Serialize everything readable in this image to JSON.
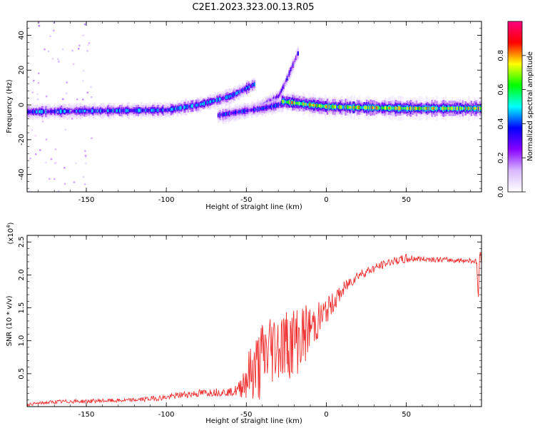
{
  "title": "C2E1.2023.323.00.13.R05",
  "colors": {
    "snr_line": "#f03030",
    "axis": "#000000",
    "background": "#ffffff"
  },
  "chart_data": [
    {
      "type": "heatmap",
      "xlabel": "Height of straight line (km)",
      "ylabel": "Frequency (Hz)",
      "xlim": [
        -187,
        97
      ],
      "ylim": [
        -50,
        48
      ],
      "x_ticks": [
        -150,
        -100,
        -50,
        0,
        50
      ],
      "y_ticks": [
        -40,
        -20,
        0,
        20,
        40
      ],
      "colorbar": {
        "label": "Normalized spectral amplitude",
        "range": [
          0,
          1
        ],
        "ticks": [
          0.0,
          0.2,
          0.4,
          0.6,
          0.8
        ],
        "colormap": [
          "#ffffff",
          "#d8b8ff",
          "#8800ff",
          "#0000ff",
          "#00ffff",
          "#00ff00",
          "#ffff00",
          "#ff0000",
          "#ff0080"
        ]
      },
      "features": [
        {
          "x": [
            -187,
            -150,
            -100,
            -80,
            -60,
            -45
          ],
          "y": [
            -4,
            -3.5,
            -3,
            0,
            5,
            12
          ],
          "amplitude": 0.45
        },
        {
          "x": [
            -65,
            -50,
            -40,
            -30,
            -25,
            -18
          ],
          "y": [
            -7,
            -3,
            0,
            5,
            15,
            30
          ],
          "amplitude": 0.3
        },
        {
          "x": [
            -68,
            -55,
            -40,
            -30,
            -20
          ],
          "y": [
            -6,
            -4,
            -2,
            0,
            3
          ],
          "amplitude": 0.4
        },
        {
          "x": [
            -28,
            -10,
            0,
            20,
            50,
            75,
            97
          ],
          "y": [
            2,
            0,
            -1,
            -1.5,
            -2,
            -2,
            -2
          ],
          "amplitude": 0.75
        }
      ]
    },
    {
      "type": "line",
      "xlabel": "Height of straight line (km)",
      "ylabel": "SNR (10 * v/v)",
      "y_scale_label": "(x10",
      "y_scale_exp": "4",
      "y_scale_close": ")",
      "xlim": [
        -187,
        97
      ],
      "ylim": [
        0,
        2.6
      ],
      "x_ticks": [
        -150,
        -100,
        -50,
        0,
        50
      ],
      "y_ticks": [
        0.5,
        1.0,
        1.5,
        2.0,
        2.5
      ],
      "series": [
        {
          "x": [
            -187,
            -180,
            -170,
            -160,
            -150,
            -140,
            -130,
            -120,
            -110,
            -100,
            -90,
            -80,
            -70,
            -60,
            -55,
            -50,
            -45,
            -40,
            -35,
            -30,
            -25,
            -20,
            -15,
            -10,
            -5,
            0,
            5,
            10,
            15,
            20,
            25,
            30,
            35,
            40,
            45,
            50,
            55,
            60,
            65,
            70,
            75,
            80,
            85,
            90,
            94,
            95,
            96,
            97
          ],
          "y": [
            0.03,
            0.05,
            0.07,
            0.08,
            0.08,
            0.09,
            0.09,
            0.1,
            0.12,
            0.14,
            0.18,
            0.2,
            0.22,
            0.22,
            0.25,
            0.45,
            0.55,
            0.7,
            0.9,
            0.95,
            0.95,
            1.0,
            1.05,
            1.2,
            1.3,
            1.45,
            1.6,
            1.75,
            1.9,
            2.0,
            2.05,
            2.1,
            2.15,
            2.2,
            2.22,
            2.24,
            2.25,
            2.24,
            2.24,
            2.23,
            2.23,
            2.22,
            2.22,
            2.22,
            2.2,
            1.6,
            2.4,
            2.2
          ],
          "noise": [
            0.02,
            0.02,
            0.03,
            0.03,
            0.03,
            0.03,
            0.03,
            0.03,
            0.04,
            0.04,
            0.05,
            0.06,
            0.06,
            0.06,
            0.1,
            0.35,
            0.5,
            0.65,
            0.6,
            0.55,
            0.55,
            0.55,
            0.5,
            0.35,
            0.3,
            0.2,
            0.15,
            0.12,
            0.1,
            0.08,
            0.07,
            0.07,
            0.06,
            0.06,
            0.06,
            0.08,
            0.05,
            0.04,
            0.04,
            0.04,
            0.04,
            0.04,
            0.04,
            0.04,
            0.04,
            0.04,
            0.1,
            0.04
          ]
        }
      ]
    }
  ]
}
